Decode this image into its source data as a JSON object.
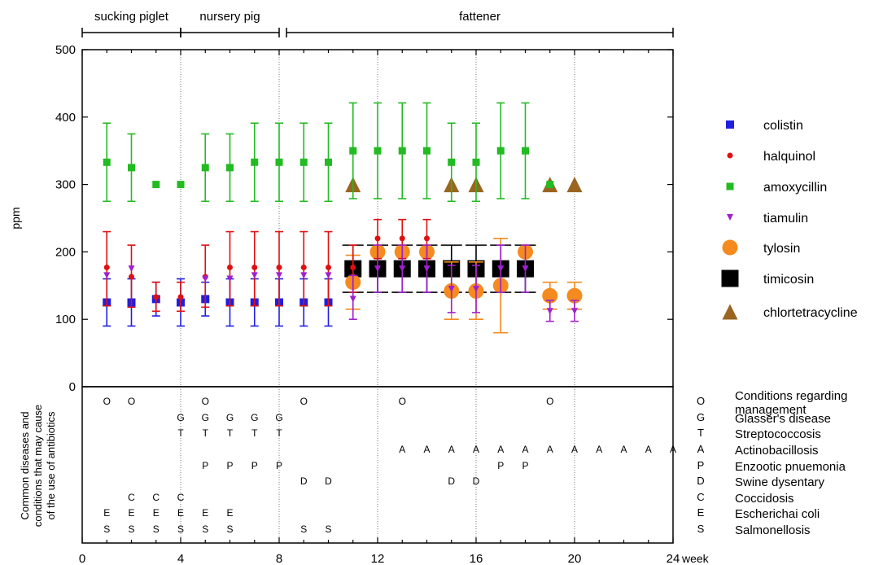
{
  "chart_data": {
    "type": "scatter",
    "xlabel": "week",
    "ylabel": "ppm",
    "xlim": [
      0,
      24
    ],
    "ylim": [
      0,
      500
    ],
    "x_ticks": [
      0,
      4,
      8,
      12,
      16,
      20,
      24
    ],
    "y_ticks": [
      0,
      100,
      200,
      300,
      400,
      500
    ],
    "grid": "vertical dotted lines at 4, 8, 12, 16, 20",
    "legend": "right",
    "phases": [
      {
        "label": "sucking piglet",
        "start": 0,
        "end": 4
      },
      {
        "label": "nursery pig",
        "start": 4,
        "end": 8
      },
      {
        "label": "fattener",
        "start": 8.3,
        "end": 24
      }
    ],
    "series": [
      {
        "name": "colistin",
        "color": "#1f1fe0",
        "marker": "square-small",
        "points": [
          {
            "x": 1,
            "y": 125,
            "lo": 90,
            "hi": 160
          },
          {
            "x": 2,
            "y": 125,
            "lo": 90,
            "hi": 160
          },
          {
            "x": 3,
            "y": 130,
            "lo": 105,
            "hi": 155
          },
          {
            "x": 4,
            "y": 125,
            "lo": 90,
            "hi": 160
          },
          {
            "x": 5,
            "y": 130,
            "lo": 105,
            "hi": 155
          },
          {
            "x": 6,
            "y": 125,
            "lo": 90,
            "hi": 160
          },
          {
            "x": 7,
            "y": 125,
            "lo": 90,
            "hi": 160
          },
          {
            "x": 8,
            "y": 125,
            "lo": 90,
            "hi": 160
          },
          {
            "x": 9,
            "y": 125,
            "lo": 90,
            "hi": 160
          },
          {
            "x": 10,
            "y": 125,
            "lo": 90,
            "hi": 160
          }
        ]
      },
      {
        "name": "halquinol",
        "color": "#e01010",
        "marker": "dot",
        "points": [
          {
            "x": 1,
            "y": 177,
            "lo": 120,
            "hi": 230
          },
          {
            "x": 2,
            "y": 163,
            "lo": 118,
            "hi": 210
          },
          {
            "x": 3,
            "y": 133,
            "lo": 112,
            "hi": 155
          },
          {
            "x": 4,
            "y": 133,
            "lo": 112,
            "hi": 155
          },
          {
            "x": 5,
            "y": 163,
            "lo": 118,
            "hi": 210
          },
          {
            "x": 6,
            "y": 177,
            "lo": 120,
            "hi": 230
          },
          {
            "x": 7,
            "y": 177,
            "lo": 120,
            "hi": 230
          },
          {
            "x": 8,
            "y": 177,
            "lo": 120,
            "hi": 230
          },
          {
            "x": 9,
            "y": 177,
            "lo": 120,
            "hi": 230
          },
          {
            "x": 10,
            "y": 177,
            "lo": 120,
            "hi": 230
          },
          {
            "x": 11,
            "y": 177,
            "lo": 140,
            "hi": 210
          },
          {
            "x": 12,
            "y": 220,
            "lo": 190,
            "hi": 248
          },
          {
            "x": 13,
            "y": 220,
            "lo": 190,
            "hi": 248
          },
          {
            "x": 14,
            "y": 220,
            "lo": 190,
            "hi": 248
          }
        ]
      },
      {
        "name": "amoxycillin",
        "color": "#22bb22",
        "marker": "square",
        "points": [
          {
            "x": 1,
            "y": 333,
            "lo": 275,
            "hi": 391
          },
          {
            "x": 2,
            "y": 325,
            "lo": 275,
            "hi": 375
          },
          {
            "x": 3,
            "y": 300
          },
          {
            "x": 4,
            "y": 300
          },
          {
            "x": 5,
            "y": 325,
            "lo": 275,
            "hi": 375
          },
          {
            "x": 6,
            "y": 325,
            "lo": 275,
            "hi": 375
          },
          {
            "x": 7,
            "y": 333,
            "lo": 275,
            "hi": 391
          },
          {
            "x": 8,
            "y": 333,
            "lo": 275,
            "hi": 391
          },
          {
            "x": 9,
            "y": 333,
            "lo": 275,
            "hi": 391
          },
          {
            "x": 10,
            "y": 333,
            "lo": 275,
            "hi": 391
          },
          {
            "x": 11,
            "y": 350,
            "lo": 279,
            "hi": 421
          },
          {
            "x": 12,
            "y": 350,
            "lo": 279,
            "hi": 421
          },
          {
            "x": 13,
            "y": 350,
            "lo": 279,
            "hi": 421
          },
          {
            "x": 14,
            "y": 350,
            "lo": 279,
            "hi": 421
          },
          {
            "x": 15,
            "y": 333,
            "lo": 275,
            "hi": 391
          },
          {
            "x": 16,
            "y": 333,
            "lo": 275,
            "hi": 391
          },
          {
            "x": 17,
            "y": 350,
            "lo": 279,
            "hi": 421
          },
          {
            "x": 18,
            "y": 350,
            "lo": 279,
            "hi": 421
          },
          {
            "x": 19,
            "y": 300
          }
        ]
      },
      {
        "name": "tiamulin",
        "color": "#a020d0",
        "marker": "triangle-down",
        "points": [
          {
            "x": 1,
            "y": 165
          },
          {
            "x": 2,
            "y": 175
          },
          {
            "x": 5,
            "y": 160
          },
          {
            "x": 6,
            "y": 160
          },
          {
            "x": 7,
            "y": 165
          },
          {
            "x": 8,
            "y": 165
          },
          {
            "x": 9,
            "y": 165
          },
          {
            "x": 10,
            "y": 165
          },
          {
            "x": 11,
            "y": 130,
            "lo": 100,
            "hi": 165
          },
          {
            "x": 12,
            "y": 175,
            "lo": 140,
            "hi": 210
          },
          {
            "x": 13,
            "y": 175,
            "lo": 140,
            "hi": 210
          },
          {
            "x": 14,
            "y": 175,
            "lo": 140,
            "hi": 210
          },
          {
            "x": 15,
            "y": 145,
            "lo": 110,
            "hi": 180
          },
          {
            "x": 16,
            "y": 145,
            "lo": 110,
            "hi": 180
          },
          {
            "x": 17,
            "y": 175,
            "lo": 140,
            "hi": 210
          },
          {
            "x": 18,
            "y": 175,
            "lo": 140,
            "hi": 210
          },
          {
            "x": 19,
            "y": 112,
            "lo": 97,
            "hi": 128
          },
          {
            "x": 20,
            "y": 112,
            "lo": 97,
            "hi": 128
          }
        ]
      },
      {
        "name": "tylosin",
        "color": "#f58a1f",
        "marker": "circle",
        "points": [
          {
            "x": 11,
            "y": 155,
            "lo": 115,
            "hi": 195
          },
          {
            "x": 12,
            "y": 200
          },
          {
            "x": 13,
            "y": 200
          },
          {
            "x": 14,
            "y": 200
          },
          {
            "x": 15,
            "y": 142,
            "lo": 100,
            "hi": 185
          },
          {
            "x": 16,
            "y": 142,
            "lo": 100,
            "hi": 185
          },
          {
            "x": 17,
            "y": 150,
            "lo": 80,
            "hi": 220
          },
          {
            "x": 18,
            "y": 200
          },
          {
            "x": 19,
            "y": 135,
            "lo": 115,
            "hi": 155
          },
          {
            "x": 20,
            "y": 135,
            "lo": 115,
            "hi": 155
          }
        ]
      },
      {
        "name": "timicosin",
        "color": "#000000",
        "marker": "square-large",
        "points": [
          {
            "x": 11,
            "y": 175,
            "lo": 140,
            "hi": 210
          },
          {
            "x": 12,
            "y": 175,
            "lo": 140,
            "hi": 210
          },
          {
            "x": 13,
            "y": 175,
            "lo": 140,
            "hi": 210
          },
          {
            "x": 14,
            "y": 175,
            "lo": 140,
            "hi": 210
          },
          {
            "x": 15,
            "y": 175,
            "lo": 140,
            "hi": 210
          },
          {
            "x": 16,
            "y": 175,
            "lo": 140,
            "hi": 210
          },
          {
            "x": 17,
            "y": 175,
            "lo": 140,
            "hi": 210
          },
          {
            "x": 18,
            "y": 175,
            "lo": 140,
            "hi": 210
          }
        ]
      },
      {
        "name": "chlortetracycline",
        "color": "#9a6520",
        "marker": "triangle-up",
        "points": [
          {
            "x": 11,
            "y": 300
          },
          {
            "x": 15,
            "y": 300
          },
          {
            "x": 16,
            "y": 300
          },
          {
            "x": 19,
            "y": 300
          },
          {
            "x": 20,
            "y": 300
          }
        ]
      }
    ],
    "disease_panel": {
      "ylabel_lines": [
        "Common diseases and",
        "conditions that may cause",
        "of the use of antibiotics"
      ],
      "rows": [
        {
          "code": "O",
          "label": "Conditions regarding management",
          "label_lines": [
            "Conditions regarding",
            "management"
          ],
          "weeks": [
            1,
            2,
            5,
            9,
            13,
            19
          ]
        },
        {
          "code": "G",
          "label": "Glasser's disease",
          "weeks": [
            4,
            5,
            6,
            7,
            8
          ]
        },
        {
          "code": "T",
          "label": "Streptococcosis",
          "weeks": [
            4,
            5,
            6,
            7,
            8
          ]
        },
        {
          "code": "A",
          "label": "Actinobacillosis",
          "weeks": [
            13,
            14,
            15,
            16,
            17,
            18,
            19,
            20,
            21,
            22,
            23,
            24
          ]
        },
        {
          "code": "P",
          "label": "Enzootic pnuemonia",
          "weeks": [
            5,
            6,
            7,
            8,
            17,
            18
          ]
        },
        {
          "code": "D",
          "label": "Swine dysentary",
          "weeks": [
            9,
            10,
            15,
            16
          ]
        },
        {
          "code": "C",
          "label": "Coccidosis",
          "weeks": [
            2,
            3,
            4
          ]
        },
        {
          "code": "E",
          "label": "Escherichai coli",
          "weeks": [
            1,
            2,
            3,
            4,
            5,
            6
          ]
        },
        {
          "code": "S",
          "label": "Salmonellosis",
          "weeks": [
            1,
            2,
            3,
            4,
            5,
            6,
            9,
            10
          ]
        }
      ]
    }
  }
}
